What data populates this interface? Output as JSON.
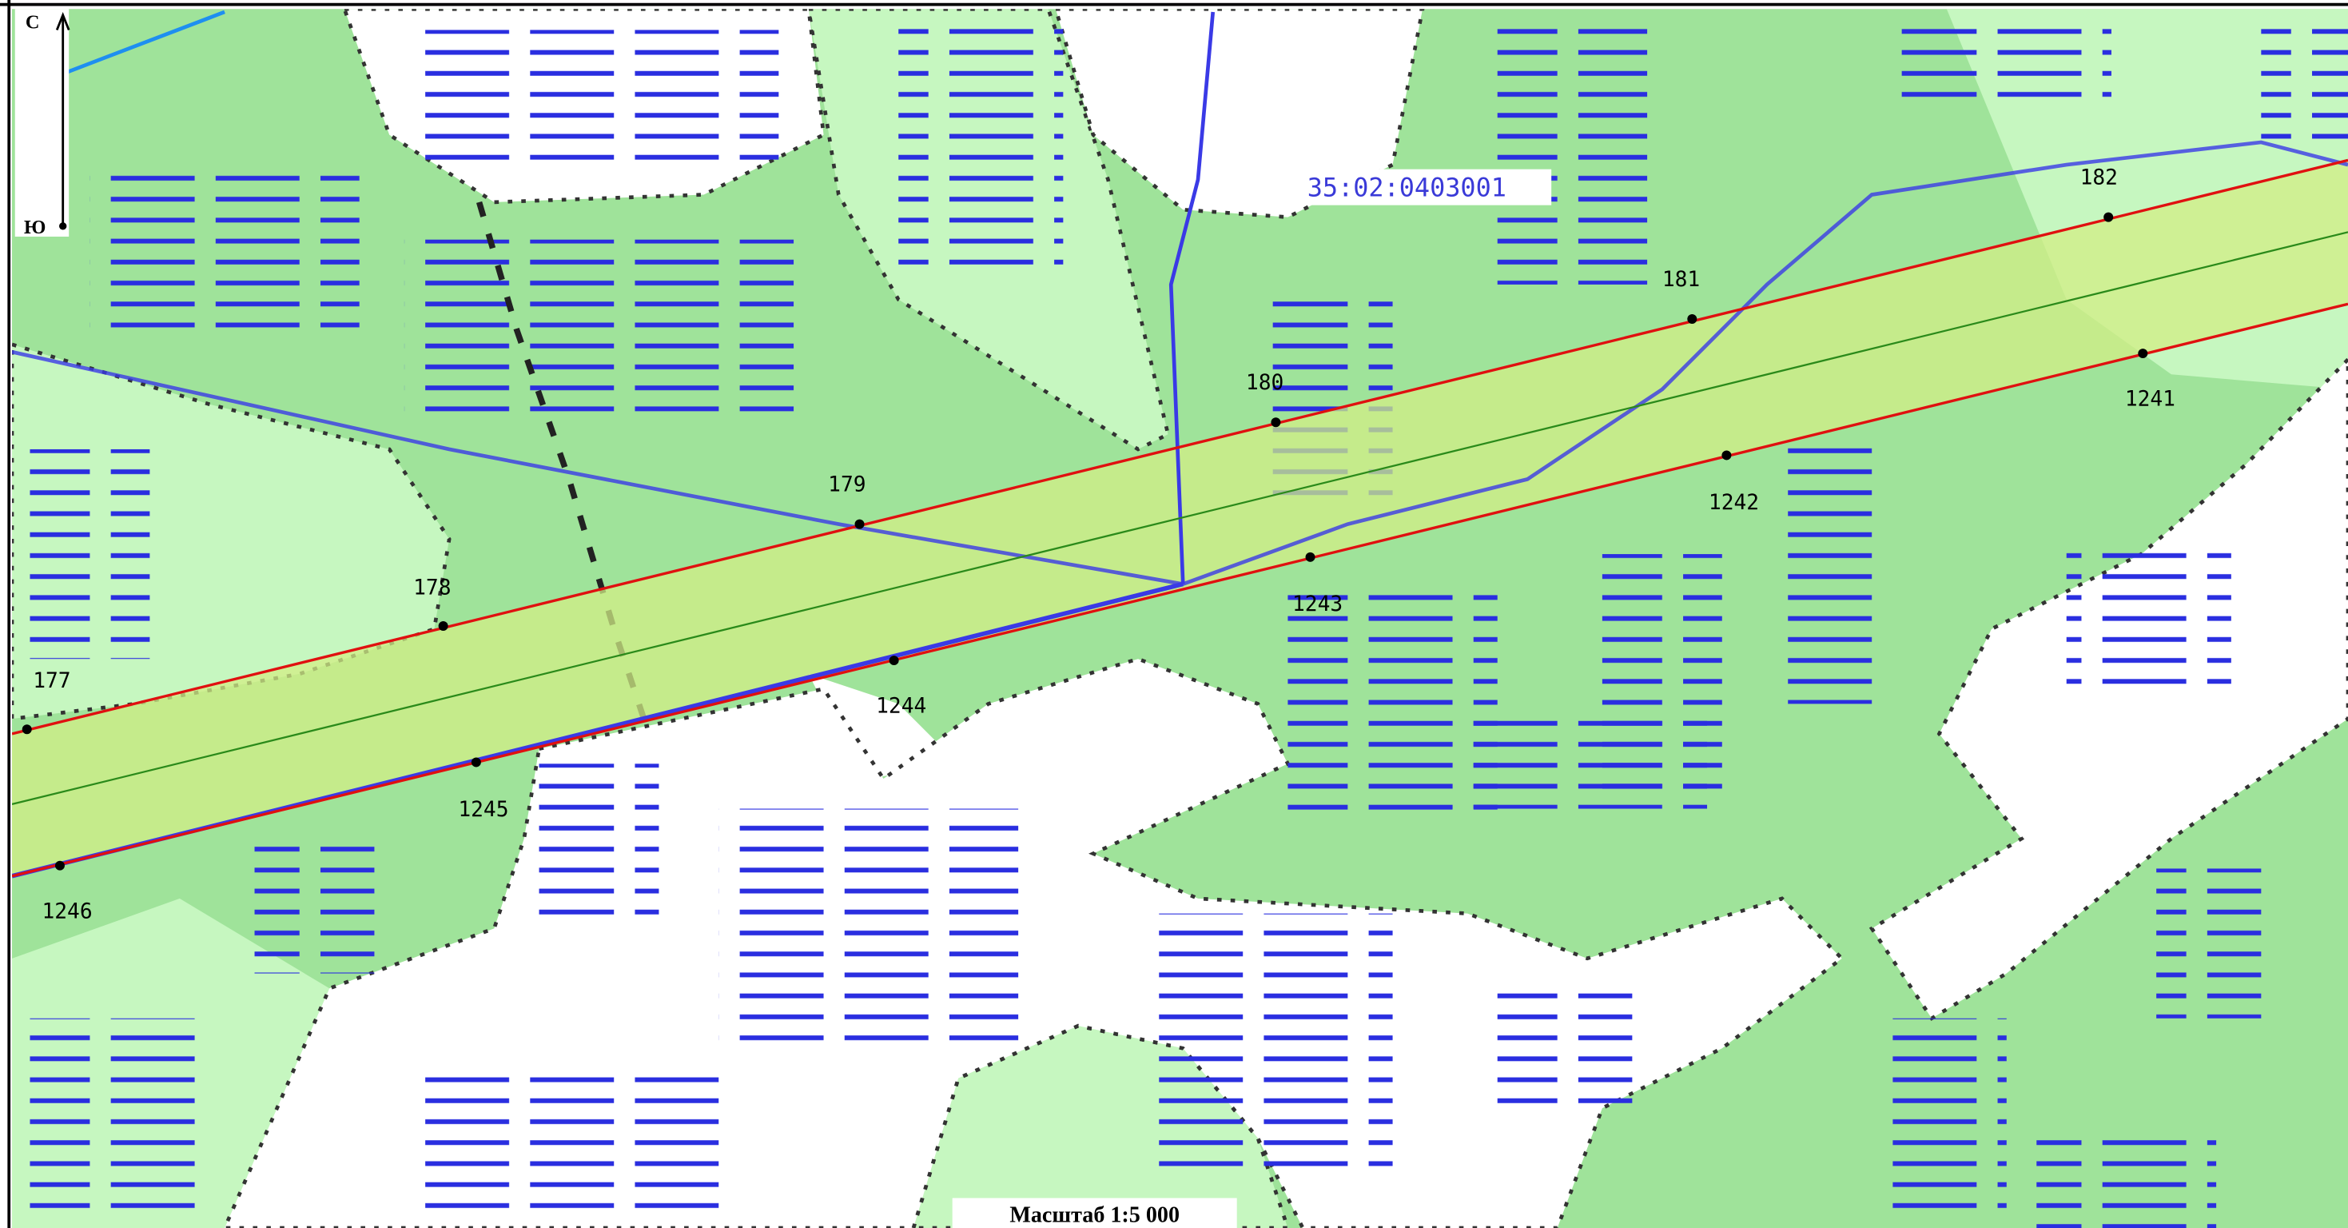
{
  "compass": {
    "north": "С",
    "south": "Ю"
  },
  "parcel_label": "35:02:0403001",
  "points": [
    {
      "label": "177"
    },
    {
      "label": "178"
    },
    {
      "label": "179"
    },
    {
      "label": "180"
    },
    {
      "label": "181"
    },
    {
      "label": "182"
    },
    {
      "label": "1241"
    },
    {
      "label": "1242"
    },
    {
      "label": "1243"
    },
    {
      "label": "1244"
    },
    {
      "label": "1245"
    },
    {
      "label": "1246"
    }
  ],
  "scale": "Масштаб 1:5 000"
}
